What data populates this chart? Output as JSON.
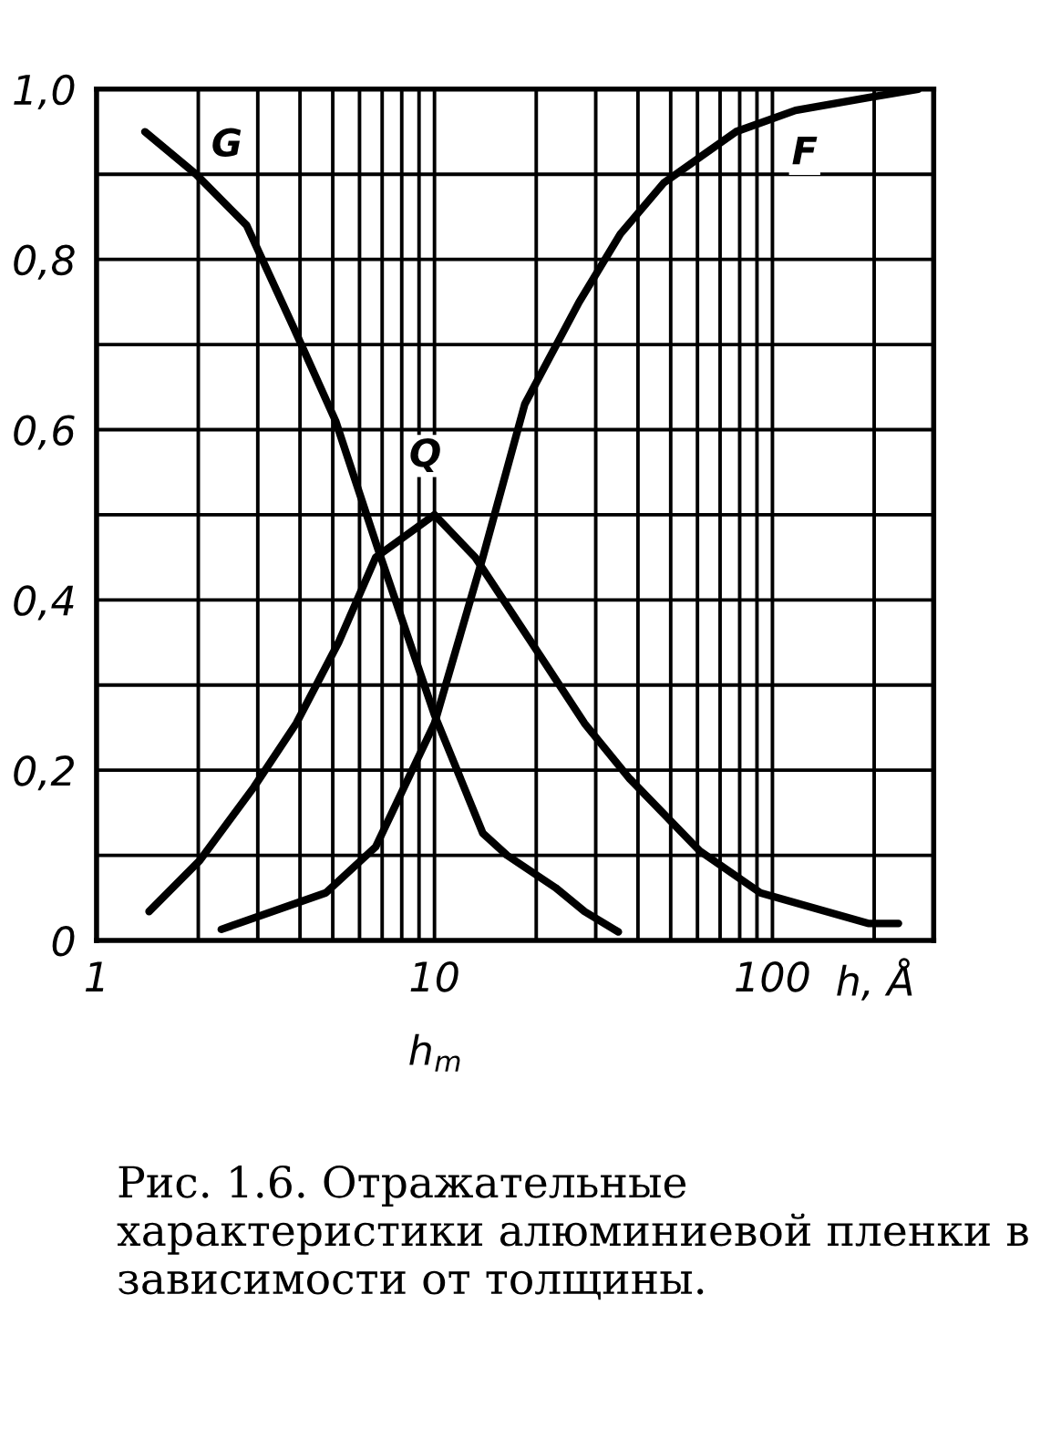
{
  "chart_data": {
    "type": "line",
    "log": "x",
    "grid": true,
    "marker": "none",
    "line_style": "solid",
    "xlabel": "h, Å",
    "xlim": [
      1,
      300
    ],
    "xticks": [
      1,
      {
        "value": 2,
        "label": null
      },
      {
        "value": 3,
        "label": null
      },
      {
        "value": 4,
        "label": null
      },
      {
        "value": 5,
        "label": null
      },
      {
        "value": 6,
        "label": null
      },
      {
        "value": 7,
        "label": null
      },
      {
        "value": 8,
        "label": null
      },
      {
        "value": 9,
        "label": null
      },
      10,
      {
        "value": 20,
        "label": null
      },
      {
        "value": 30,
        "label": null
      },
      {
        "value": 40,
        "label": null
      },
      {
        "value": 50,
        "label": null
      },
      {
        "value": 60,
        "label": null
      },
      {
        "value": 70,
        "label": null
      },
      {
        "value": 80,
        "label": null
      },
      {
        "value": 90,
        "label": null
      },
      100,
      {
        "value": 200,
        "label": null
      }
    ],
    "ylim": [
      0,
      1
    ],
    "yticks": [
      0,
      {
        "value": 0.1,
        "label": null
      },
      {
        "value": 0.2,
        "label": "0,2"
      },
      {
        "value": 0.3,
        "label": null
      },
      {
        "value": 0.4,
        "label": "0,4"
      },
      {
        "value": 0.5,
        "label": null
      },
      {
        "value": 0.6,
        "label": "0,6"
      },
      {
        "value": 0.7,
        "label": null
      },
      {
        "value": 0.8,
        "label": "0,8"
      },
      {
        "value": 0.9,
        "label": null
      },
      {
        "value": 1.0,
        "label": "1,0"
      }
    ],
    "series": [
      {
        "name": "G",
        "color": "#000000",
        "x": [
          1.39,
          1.97,
          2.78,
          3.83,
          5.1,
          6.8,
          10,
          13.9,
          16.4,
          22.8,
          27.8,
          35
        ],
        "values": [
          0.95,
          0.9,
          0.84,
          0.72,
          0.61,
          0.46,
          0.265,
          0.126,
          0.1,
          0.062,
          0.034,
          0.01
        ]
      },
      {
        "name": "Q",
        "color": "#000000",
        "x": [
          1.43,
          2.02,
          2.92,
          3.9,
          5.2,
          6.7,
          10,
          13.2,
          20.9,
          27.8,
          37.8,
          61,
          92,
          192,
          236
        ],
        "values": [
          0.034,
          0.094,
          0.18,
          0.255,
          0.35,
          0.45,
          0.5,
          0.45,
          0.33,
          0.255,
          0.19,
          0.105,
          0.056,
          0.02,
          0.02
        ]
      },
      {
        "name": "F",
        "color": "#000000",
        "x": [
          2.34,
          4.77,
          6.7,
          10,
          13.9,
          18.5,
          26.8,
          35.5,
          47.7,
          78,
          117,
          192,
          270
        ],
        "values": [
          0.013,
          0.056,
          0.11,
          0.255,
          0.45,
          0.63,
          0.75,
          0.83,
          0.89,
          0.95,
          0.975,
          0.99,
          1.0
        ]
      }
    ],
    "annotations": [
      "h$_{m}$",
      "Рис. 1.6. Отражательные характеристики алюминиевой пленки в зависимости от толщины."
    ]
  }
}
